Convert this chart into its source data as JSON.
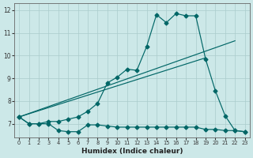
{
  "xlabel": "Humidex (Indice chaleur)",
  "bg_color": "#cce8e8",
  "line_color": "#006666",
  "grid_color": "#aacccc",
  "xlim": [
    -0.5,
    23.5
  ],
  "ylim": [
    6.4,
    12.3
  ],
  "xticks": [
    0,
    1,
    2,
    3,
    4,
    5,
    6,
    7,
    8,
    9,
    10,
    11,
    12,
    13,
    14,
    15,
    16,
    17,
    18,
    19,
    20,
    21,
    22,
    23
  ],
  "yticks": [
    7,
    8,
    9,
    10,
    11,
    12
  ],
  "line_flat_x": [
    0,
    1,
    2,
    3,
    4,
    5,
    6,
    7,
    8,
    9,
    10,
    11,
    12,
    13,
    14,
    15,
    16,
    17,
    18,
    19,
    20,
    21,
    22,
    23
  ],
  "line_flat_y": [
    7.3,
    7.0,
    7.0,
    7.0,
    6.7,
    6.65,
    6.65,
    6.95,
    6.95,
    6.9,
    6.85,
    6.85,
    6.85,
    6.85,
    6.85,
    6.85,
    6.85,
    6.85,
    6.85,
    6.75,
    6.75,
    6.7,
    6.7,
    6.65
  ],
  "line_main_x": [
    0,
    1,
    2,
    3,
    4,
    5,
    6,
    7,
    8,
    9,
    10,
    11,
    12,
    13,
    14,
    15,
    16,
    17,
    18,
    19,
    20,
    21,
    22,
    23
  ],
  "line_main_y": [
    7.3,
    7.0,
    7.0,
    7.1,
    7.1,
    7.2,
    7.3,
    7.55,
    7.9,
    8.8,
    9.05,
    9.4,
    9.35,
    10.4,
    11.8,
    11.45,
    11.85,
    11.75,
    11.75,
    9.85,
    8.45,
    7.35,
    6.7,
    6.65
  ],
  "trend1_x": [
    0,
    19
  ],
  "trend1_y": [
    7.3,
    9.9
  ],
  "trend2_x": [
    0,
    22
  ],
  "trend2_y": [
    7.3,
    10.65
  ],
  "marker_style": "D",
  "marker_size": 2.5
}
